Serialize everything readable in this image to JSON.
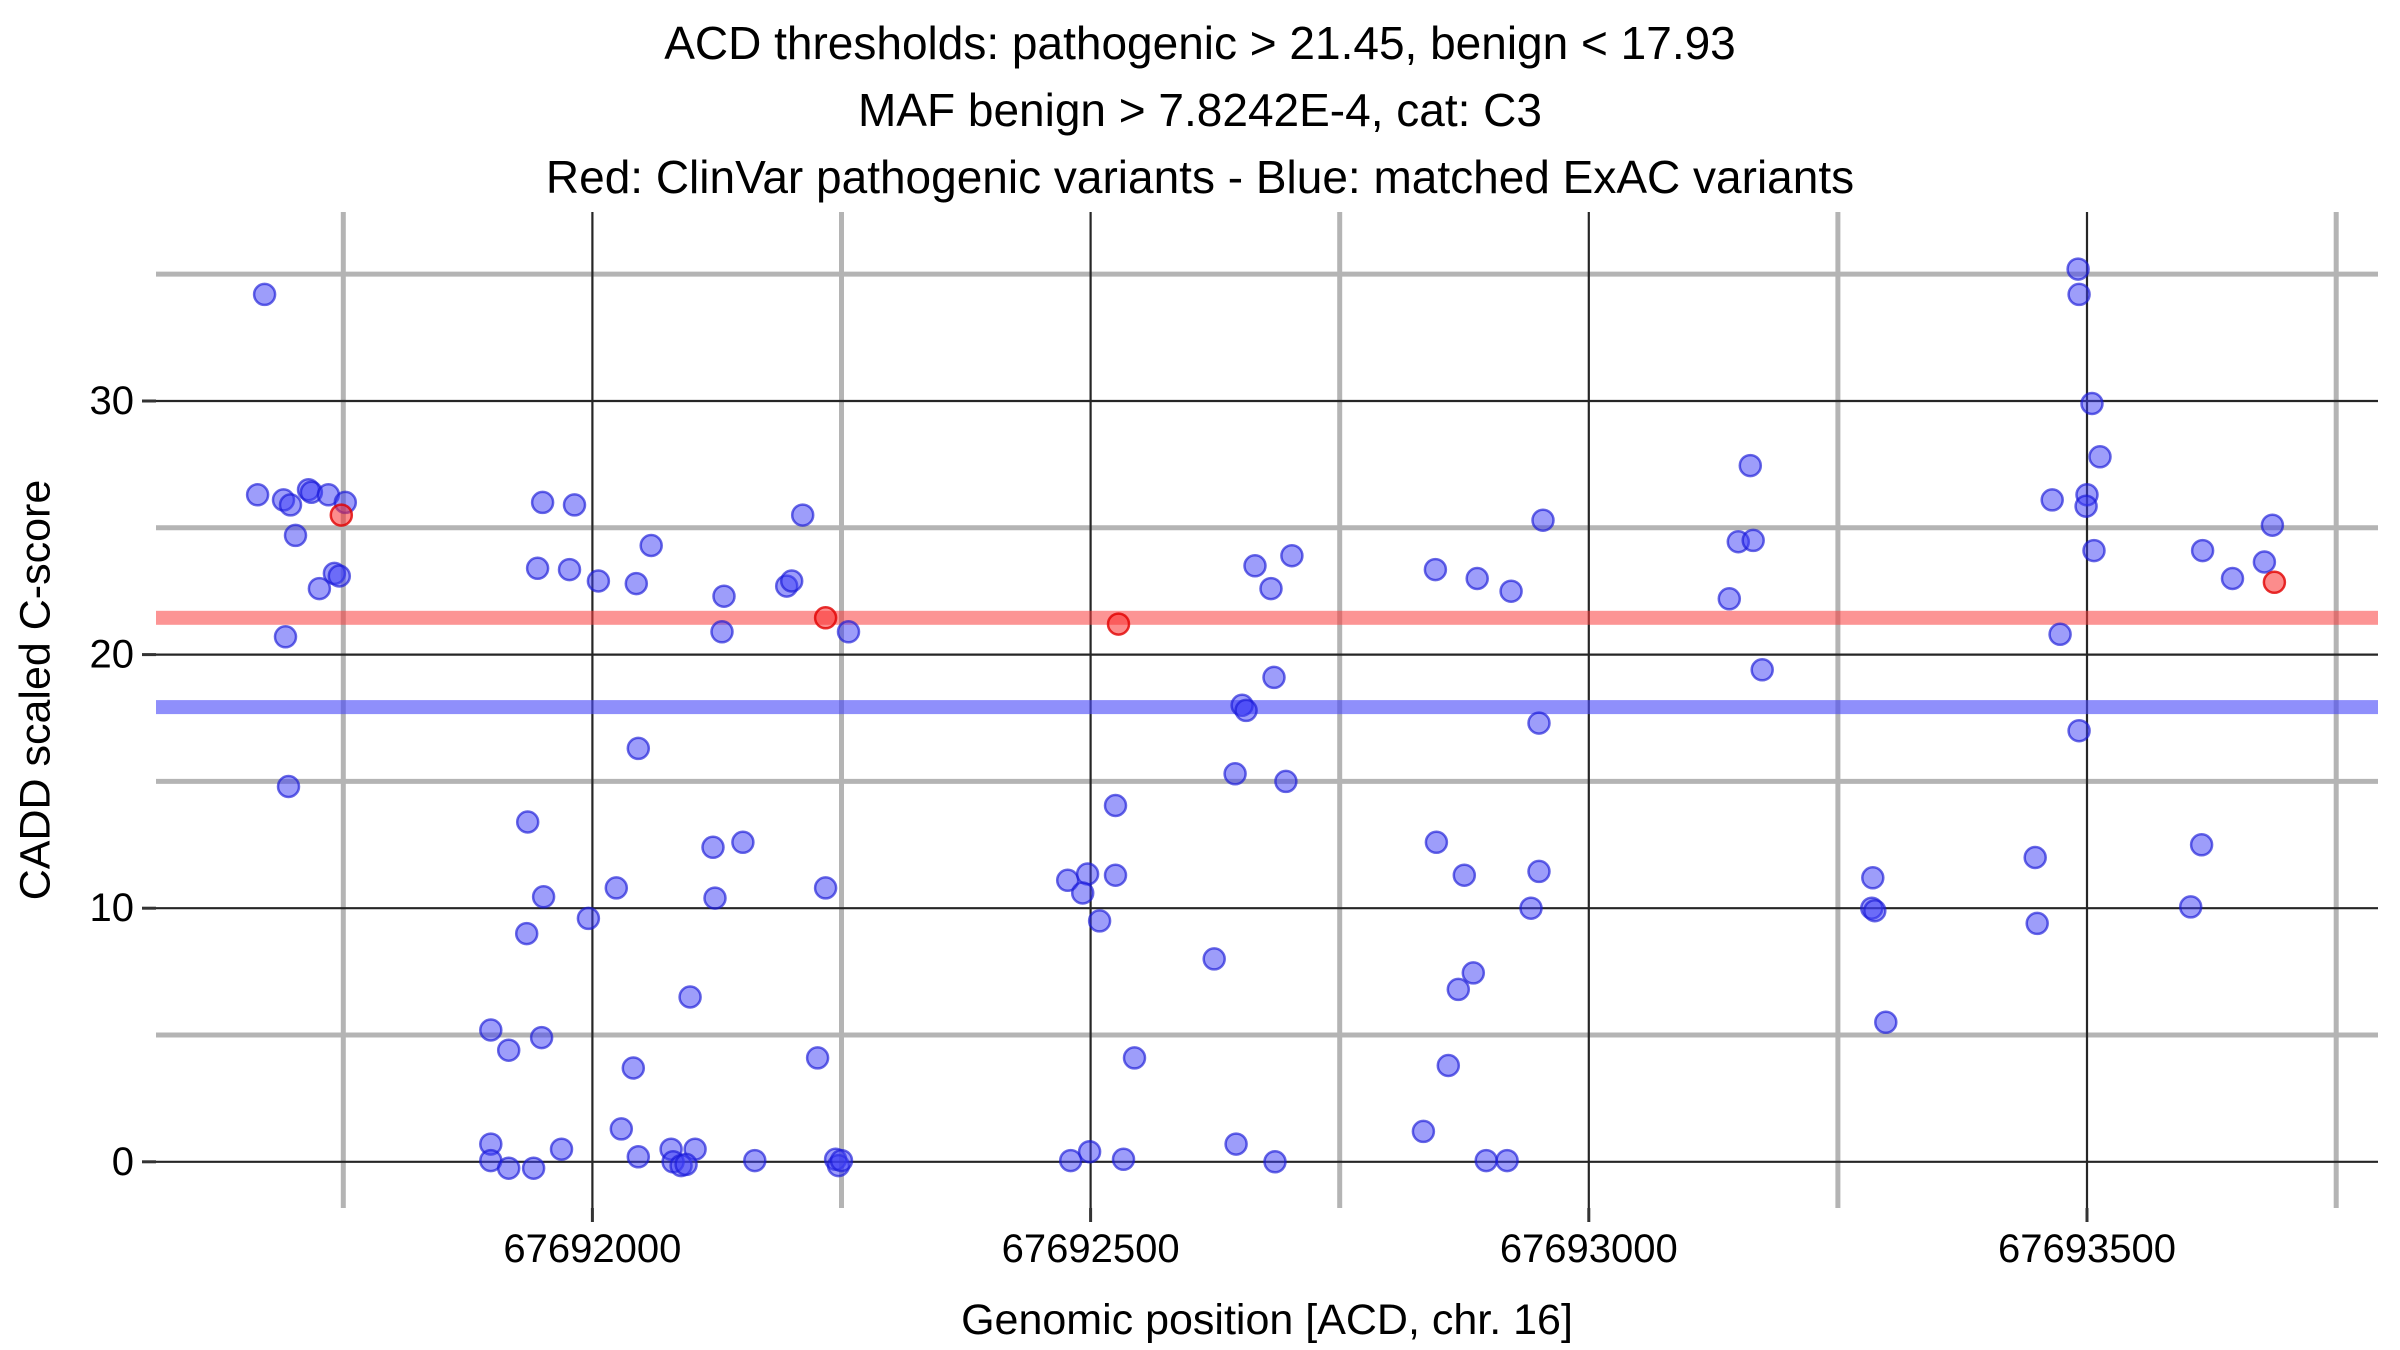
{
  "title": {
    "line1": "ACD thresholds: pathogenic > 21.45, benign < 17.93",
    "line2": "MAF benign > 7.8242E-4, cat: C3",
    "line3": "Red: ClinVar pathogenic variants - Blue: matched ExAC variants"
  },
  "chart_data": {
    "type": "scatter",
    "xlabel": "Genomic position [ACD, chr. 16]",
    "ylabel": "CADD scaled C-score",
    "xlim": [
      67691562,
      67693792
    ],
    "ylim": [
      -1.82,
      37.45
    ],
    "x_major_ticks": [
      67692000,
      67692500,
      67693000,
      67693500
    ],
    "x_minor_gridlines": [
      67691750,
      67692250,
      67692750,
      67693250,
      67693750
    ],
    "y_major_ticks": [
      0,
      10,
      20,
      30
    ],
    "y_minor_gridlines": [
      5,
      15,
      25,
      35
    ],
    "grid": true,
    "legend_position": "none",
    "thresholds": {
      "pathogenic_acd": 21.45,
      "benign_acd": 17.93,
      "pathogenic_band_color": "rgba(250,60,60,0.55)",
      "benign_band_color": "rgba(75,75,248,0.62)"
    },
    "series": [
      {
        "name": "matched ExAC variants",
        "color_fill": "rgba(60,60,245,0.5)",
        "color_stroke": "rgba(25,25,215,0.65)",
        "points": [
          [
            67691671,
            34.2
          ],
          [
            67691664,
            26.3
          ],
          [
            67691690,
            26.1
          ],
          [
            67691697,
            25.9
          ],
          [
            67691715,
            26.5
          ],
          [
            67691718,
            26.4
          ],
          [
            67691735,
            26.3
          ],
          [
            67691752,
            26.0
          ],
          [
            67691702,
            24.7
          ],
          [
            67691741,
            23.2
          ],
          [
            67691746,
            23.1
          ],
          [
            67691726,
            22.6
          ],
          [
            67691692,
            20.7
          ],
          [
            67691695,
            14.8
          ],
          [
            67691950,
            26.0
          ],
          [
            67691982,
            25.9
          ],
          [
            67692059,
            24.3
          ],
          [
            67691945,
            23.4
          ],
          [
            67691977,
            23.35
          ],
          [
            67692006,
            22.9
          ],
          [
            67692044,
            22.8
          ],
          [
            67692046,
            16.3
          ],
          [
            67691935,
            13.4
          ],
          [
            67692024,
            10.8
          ],
          [
            67691951,
            10.45
          ],
          [
            67691996,
            9.6
          ],
          [
            67691934,
            9.0
          ],
          [
            67692098,
            6.5
          ],
          [
            67691898,
            5.2
          ],
          [
            67691949,
            4.9
          ],
          [
            67691916,
            4.4
          ],
          [
            67692041,
            3.7
          ],
          [
            67692029,
            1.3
          ],
          [
            67691898,
            0.7
          ],
          [
            67691898,
            0.05
          ],
          [
            67691916,
            -0.25
          ],
          [
            67691941,
            -0.25
          ],
          [
            67691969,
            0.5
          ],
          [
            67692046,
            0.2
          ],
          [
            67692079,
            0.5
          ],
          [
            67692103,
            0.5
          ],
          [
            67692081,
            0.0
          ],
          [
            67692089,
            -0.15
          ],
          [
            67692094,
            -0.1
          ],
          [
            67692132,
            22.3
          ],
          [
            67692130,
            20.9
          ],
          [
            67692121,
            12.4
          ],
          [
            67692151,
            12.6
          ],
          [
            67692123,
            10.4
          ],
          [
            67692163,
            0.05
          ],
          [
            67692211,
            25.5
          ],
          [
            67692195,
            22.7
          ],
          [
            67692200,
            22.9
          ],
          [
            67692257,
            20.9
          ],
          [
            67692234,
            10.8
          ],
          [
            67692477,
            11.1
          ],
          [
            67692497,
            11.35
          ],
          [
            67692525,
            11.3
          ],
          [
            67692492,
            10.6
          ],
          [
            67692509,
            9.5
          ],
          [
            67692525,
            14.05
          ],
          [
            67692624,
            8.0
          ],
          [
            67692544,
            4.1
          ],
          [
            67692226,
            4.1
          ],
          [
            67692244,
            0.1
          ],
          [
            67692247,
            -0.15
          ],
          [
            67692250,
            0.05
          ],
          [
            67692480,
            0.05
          ],
          [
            67692499,
            0.4
          ],
          [
            67692533,
            0.1
          ],
          [
            67692646,
            0.7
          ],
          [
            67692645,
            15.3
          ],
          [
            67692665,
            23.5
          ],
          [
            67692681,
            22.6
          ],
          [
            67692684,
            19.1
          ],
          [
            67692652,
            18.0
          ],
          [
            67692656,
            17.8
          ],
          [
            67692685,
            0.0
          ],
          [
            67692702,
            23.9
          ],
          [
            67692696,
            15.0
          ],
          [
            67692954,
            25.3
          ],
          [
            67692846,
            23.35
          ],
          [
            67692888,
            23.0
          ],
          [
            67692922,
            22.5
          ],
          [
            67692950,
            17.3
          ],
          [
            67692847,
            12.6
          ],
          [
            67692875,
            11.3
          ],
          [
            67692950,
            11.45
          ],
          [
            67692942,
            10.0
          ],
          [
            67692884,
            7.45
          ],
          [
            67692869,
            6.8
          ],
          [
            67692859,
            3.8
          ],
          [
            67692834,
            1.2
          ],
          [
            67692897,
            0.05
          ],
          [
            67692918,
            0.05
          ],
          [
            67693162,
            27.45
          ],
          [
            67693150,
            24.45
          ],
          [
            67693165,
            24.5
          ],
          [
            67693141,
            22.2
          ],
          [
            67693174,
            19.4
          ],
          [
            67693491,
            35.2
          ],
          [
            67693492,
            34.2
          ],
          [
            67693505,
            29.9
          ],
          [
            67693513,
            27.8
          ],
          [
            67693465,
            26.1
          ],
          [
            67693500,
            26.3
          ],
          [
            67693499,
            25.85
          ],
          [
            67693686,
            25.1
          ],
          [
            67693507,
            24.1
          ],
          [
            67693616,
            24.1
          ],
          [
            67693678,
            23.65
          ],
          [
            67693646,
            23.0
          ],
          [
            67693473,
            20.8
          ],
          [
            67693492,
            17.0
          ],
          [
            67693285,
            11.2
          ],
          [
            67693448,
            12.0
          ],
          [
            67693615,
            12.5
          ],
          [
            67693284,
            10.0
          ],
          [
            67693287,
            9.9
          ],
          [
            67693450,
            9.4
          ],
          [
            67693604,
            10.05
          ],
          [
            67693298,
            5.5
          ]
        ]
      },
      {
        "name": "ClinVar pathogenic variants",
        "color_fill": "rgba(250,45,45,0.55)",
        "color_stroke": "rgba(225,0,0,0.8)",
        "points": [
          [
            67691748,
            25.5
          ],
          [
            67692234,
            21.45
          ],
          [
            67692528,
            21.2
          ],
          [
            67693688,
            22.85
          ]
        ]
      }
    ]
  },
  "colors": {
    "background": "#ffffff",
    "major_gridline": "#262626",
    "minor_gridline": "#b4b4b4",
    "tick_mark": "#333333",
    "text": "#000000"
  }
}
